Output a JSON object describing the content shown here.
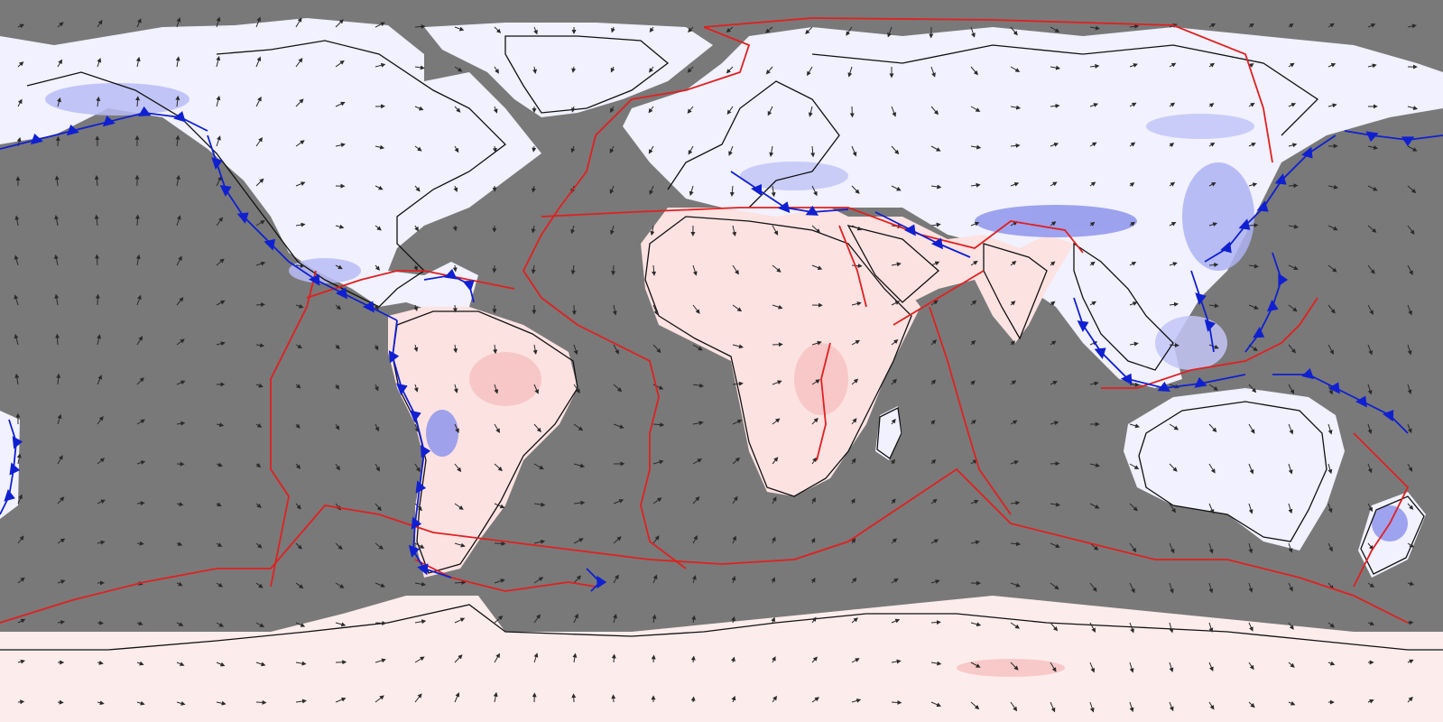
{
  "map": {
    "projection": "equirectangular",
    "extent": {
      "lon": [
        -180,
        180
      ],
      "lat": [
        -90,
        90
      ]
    },
    "colors": {
      "ocean": "#797979",
      "land_base": "#f1f1ff",
      "uplift": "#fde2e2",
      "uplift_strong": "#f7c3c3",
      "subsidence": "#d9dcfb",
      "subsidence_strong": "#8f95ec",
      "coastline": "#111111",
      "ridge_boundary": "#e02020",
      "subduction_boundary": "#1020d0",
      "velocity_arrow": "#2a2a2a"
    },
    "layers": [
      {
        "name": "velocity-field",
        "symbol": "arrow-icon"
      },
      {
        "name": "plate-boundaries",
        "kinds": [
          "ridge-transform",
          "subduction"
        ]
      },
      {
        "name": "vertical-motion-shading",
        "symbol": "color-fill"
      },
      {
        "name": "coastlines"
      }
    ]
  }
}
